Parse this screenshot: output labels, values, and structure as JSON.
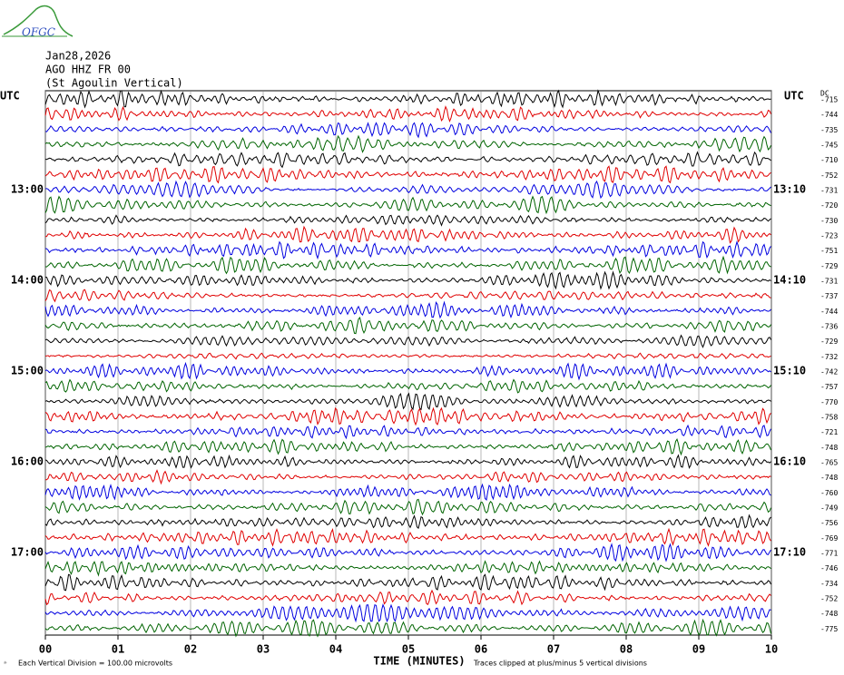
{
  "header": {
    "logo": "OFGC",
    "date": "Jan28,2026",
    "station": "AGO HHZ FR 00",
    "location": "(St Agoulin Vertical)"
  },
  "axes": {
    "left_title": "UTC",
    "right_title": "UTC",
    "dc_title": "DC",
    "left_hours": [
      "13:00",
      "14:00",
      "15:00",
      "16:00",
      "17:00"
    ],
    "right_hours": [
      "13:10",
      "14:10",
      "15:10",
      "16:10",
      "17:10"
    ],
    "minutes": [
      "00",
      "01",
      "02",
      "03",
      "04",
      "05",
      "06",
      "07",
      "08",
      "09",
      "10"
    ],
    "x_title": "TIME (MINUTES)"
  },
  "dc_offsets": [
    "-715",
    "-744",
    "-735",
    "-745",
    "-710",
    "-752",
    "-731",
    "-720",
    "-730",
    "-723",
    "-751",
    "-729",
    "-731",
    "-737",
    "-744",
    "-736",
    "-729",
    "-732",
    "-742",
    "-757",
    "-770",
    "-758",
    "-721",
    "-748",
    "-765",
    "-748",
    "-760",
    "-749",
    "-756",
    "-769",
    "-771",
    "-746",
    "-734",
    "-752",
    "-748",
    "-775"
  ],
  "trace_colors": [
    "#000000",
    "#e00000",
    "#0000e0",
    "#006400"
  ],
  "footer": {
    "scale": "Each Vertical Division =  100.00 microvolts",
    "clip": "Traces clipped at plus/minus 5 vertical divisions"
  }
}
